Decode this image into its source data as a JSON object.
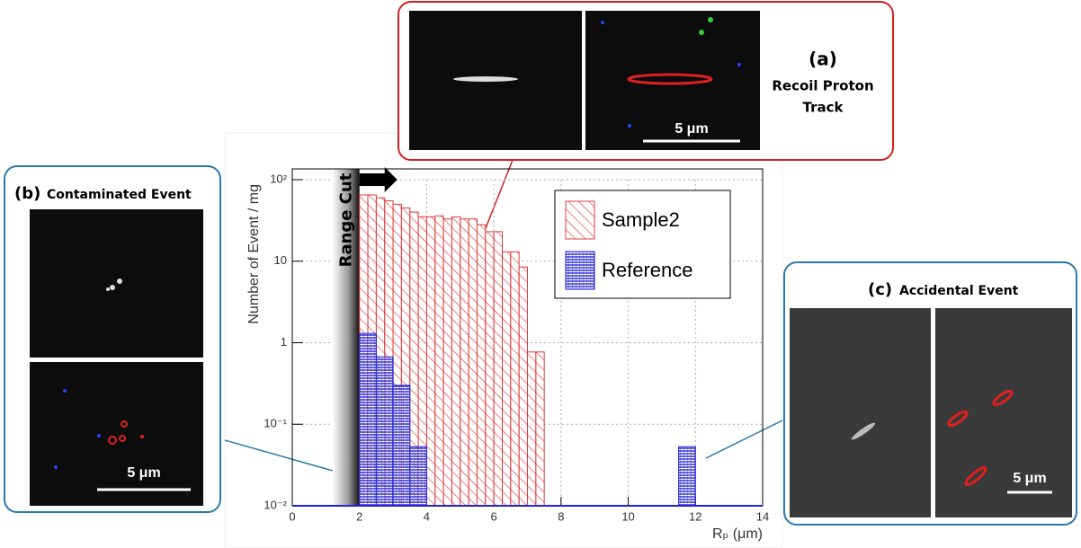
{
  "chart_data": {
    "type": "histogram",
    "xlabel": "Rₚ (μm)",
    "ylabel": "Number of Event / mg",
    "xlim": [
      0,
      14
    ],
    "xticks": [
      0,
      2,
      4,
      6,
      8,
      10,
      12,
      14
    ],
    "ylim": [
      0.01,
      100
    ],
    "ylog": true,
    "grid": true,
    "yticks": [
      {
        "value": 0.01,
        "label": "10⁻²"
      },
      {
        "value": 0.1,
        "label": "10⁻¹"
      },
      1,
      10,
      {
        "value": 100,
        "label": "10²"
      }
    ],
    "legend": "upper right",
    "range_cut": 2,
    "range_cut_label": "Range Cut",
    "series": [
      {
        "name": "Sample2",
        "color": "#e03c3c",
        "bins": [
          2,
          2.25,
          2.5,
          2.75,
          3,
          3.25,
          3.5,
          3.75,
          4,
          4.25,
          4.5,
          4.75,
          5,
          5.25,
          5.5,
          5.75,
          6,
          6.25,
          6.5,
          6.75,
          7,
          7.25,
          7.5
        ],
        "values": [
          65,
          65,
          60,
          55,
          50,
          45,
          40,
          35,
          35,
          36,
          33,
          35,
          33,
          33,
          28,
          23,
          23,
          13,
          13,
          8.5,
          0.77,
          0.77
        ]
      },
      {
        "name": "Reference",
        "color": "#2323d4",
        "bins": [
          2,
          2.5,
          3,
          3.5,
          4,
          4.5,
          5,
          5.5,
          6,
          6.5,
          7,
          7.5,
          8,
          8.5,
          9,
          9.5,
          10,
          10.5,
          11,
          11.5,
          12
        ],
        "values": [
          1.3,
          0.67,
          0.3,
          0.053,
          null,
          null,
          null,
          null,
          null,
          null,
          null,
          null,
          null,
          null,
          null,
          null,
          null,
          null,
          null,
          0.053
        ]
      }
    ]
  },
  "panels": [
    {
      "label": "(a)",
      "caption": [
        "Recoil Proton",
        "Track"
      ],
      "scale_bar": "5 μm"
    },
    {
      "label": "(b)",
      "caption": [
        "Contaminated Event"
      ],
      "scale_bar": "5 μm"
    },
    {
      "label": "(c)",
      "caption": [
        "Accidental Event"
      ],
      "scale_bar": "5 μm"
    }
  ]
}
